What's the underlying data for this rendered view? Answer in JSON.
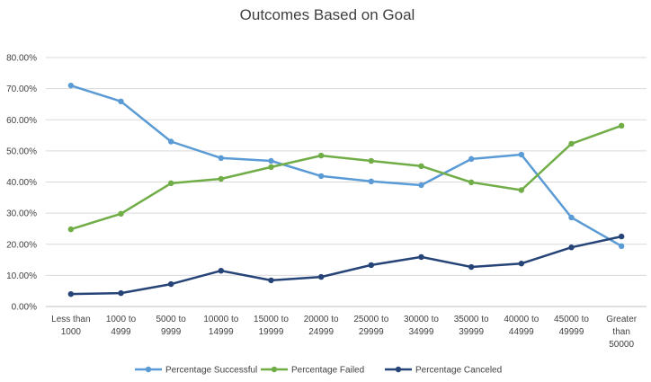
{
  "chart_data": {
    "type": "line",
    "title": "Outcomes Based on Goal",
    "xlabel": "",
    "ylabel": "",
    "categories": [
      [
        "Less than",
        "1000"
      ],
      [
        "1000 to",
        "4999"
      ],
      [
        "5000 to",
        "9999"
      ],
      [
        "10000 to",
        "14999"
      ],
      [
        "15000 to",
        "19999"
      ],
      [
        "20000 to",
        "24999"
      ],
      [
        "25000 to",
        "29999"
      ],
      [
        "30000 to",
        "34999"
      ],
      [
        "35000 to",
        "39999"
      ],
      [
        "40000 to",
        "44999"
      ],
      [
        "45000 to",
        "49999"
      ],
      [
        "Greater",
        "than",
        "50000"
      ]
    ],
    "ylim": [
      0,
      80
    ],
    "yticks": [
      "0.00%",
      "10.00%",
      "20.00%",
      "30.00%",
      "40.00%",
      "50.00%",
      "60.00%",
      "70.00%",
      "80.00%"
    ],
    "grid": true,
    "legend_position": "bottom",
    "series": [
      {
        "name": "Percentage Successful",
        "color": "#5b9bd5",
        "values": [
          71.0,
          65.9,
          53.0,
          47.7,
          46.8,
          41.9,
          40.2,
          39.0,
          47.4,
          48.8,
          28.6,
          19.4
        ]
      },
      {
        "name": "Percentage Failed",
        "color": "#70ad47",
        "values": [
          24.8,
          29.8,
          39.6,
          41.0,
          44.8,
          48.5,
          46.8,
          45.1,
          39.9,
          37.4,
          52.3,
          58.1
        ]
      },
      {
        "name": "Percentage Canceled",
        "color": "#264478",
        "values": [
          4.0,
          4.3,
          7.2,
          11.5,
          8.4,
          9.5,
          13.3,
          15.9,
          12.7,
          13.8,
          19.0,
          22.5
        ]
      }
    ]
  }
}
